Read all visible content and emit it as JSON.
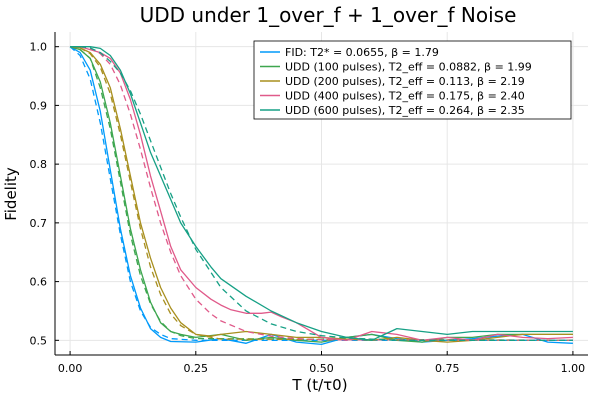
{
  "chart_data": {
    "type": "line",
    "title": "UDD under 1_over_f + 1_over_f Noise",
    "xlabel": "T (t/τ0)",
    "ylabel": "Fidelity",
    "xlim": [
      -0.03,
      1.03
    ],
    "ylim": [
      0.475,
      1.025
    ],
    "xticks": [
      0.0,
      0.25,
      0.5,
      0.75,
      1.0
    ],
    "xtick_labels": [
      "0.00",
      "0.25",
      "0.50",
      "0.75",
      "1.00"
    ],
    "yticks": [
      0.5,
      0.6,
      0.7,
      0.8,
      0.9,
      1.0
    ],
    "ytick_labels": [
      "0.5",
      "0.6",
      "0.7",
      "0.8",
      "0.9",
      "1.0"
    ],
    "grid": true,
    "legend_position": "top-right",
    "series": [
      {
        "name": "FID: T2* = 0.0655, β = 1.79",
        "color": "#009AFA",
        "x": [
          0.0,
          0.02,
          0.04,
          0.06,
          0.08,
          0.1,
          0.12,
          0.14,
          0.16,
          0.18,
          0.2,
          0.25,
          0.3,
          0.35,
          0.4,
          0.45,
          0.5,
          0.55,
          0.6,
          0.65,
          0.7,
          0.75,
          0.8,
          0.85,
          0.9,
          0.95,
          1.0
        ],
        "y": [
          1.0,
          0.99,
          0.96,
          0.89,
          0.79,
          0.69,
          0.61,
          0.555,
          0.52,
          0.505,
          0.498,
          0.497,
          0.503,
          0.495,
          0.51,
          0.497,
          0.493,
          0.505,
          0.51,
          0.503,
          0.497,
          0.5,
          0.503,
          0.507,
          0.51,
          0.497,
          0.495
        ],
        "fit_x": [
          0.0,
          0.02,
          0.04,
          0.06,
          0.08,
          0.1,
          0.12,
          0.14,
          0.16,
          0.18,
          0.2,
          0.25,
          0.3,
          1.0
        ],
        "fit_y": [
          1.0,
          0.985,
          0.945,
          0.87,
          0.775,
          0.68,
          0.6,
          0.55,
          0.522,
          0.51,
          0.503,
          0.5,
          0.5,
          0.5
        ]
      },
      {
        "name": "UDD (100 pulses), T2_eff = 0.0882, β = 1.99",
        "color": "#3DA64F",
        "x": [
          0.0,
          0.02,
          0.04,
          0.06,
          0.08,
          0.1,
          0.12,
          0.14,
          0.16,
          0.18,
          0.2,
          0.22,
          0.25,
          0.3,
          0.35,
          0.4,
          0.45,
          0.5,
          0.55,
          0.6,
          0.65,
          0.7,
          0.75,
          0.8,
          0.85,
          0.9,
          0.95,
          1.0
        ],
        "y": [
          1.0,
          0.995,
          0.98,
          0.94,
          0.87,
          0.78,
          0.69,
          0.62,
          0.565,
          0.53,
          0.515,
          0.51,
          0.505,
          0.51,
          0.5,
          0.505,
          0.5,
          0.497,
          0.505,
          0.51,
          0.5,
          0.497,
          0.505,
          0.505,
          0.51,
          0.51,
          0.51,
          0.51
        ],
        "fit_x": [
          0.0,
          0.02,
          0.04,
          0.06,
          0.08,
          0.1,
          0.12,
          0.14,
          0.16,
          0.18,
          0.2,
          0.22,
          0.25,
          1.0
        ],
        "fit_y": [
          1.0,
          0.995,
          0.98,
          0.93,
          0.86,
          0.77,
          0.68,
          0.61,
          0.562,
          0.532,
          0.515,
          0.508,
          0.503,
          0.5
        ]
      },
      {
        "name": "UDD (200 pulses), T2_eff = 0.113, β = 2.19",
        "color": "#A88F1F",
        "x": [
          0.0,
          0.02,
          0.04,
          0.06,
          0.08,
          0.1,
          0.12,
          0.14,
          0.16,
          0.18,
          0.2,
          0.22,
          0.25,
          0.28,
          0.3,
          0.35,
          0.4,
          0.45,
          0.5,
          0.55,
          0.6,
          0.65,
          0.7,
          0.75,
          0.8,
          0.85,
          0.9,
          0.95,
          1.0
        ],
        "y": [
          1.0,
          0.998,
          0.99,
          0.97,
          0.93,
          0.86,
          0.78,
          0.7,
          0.64,
          0.59,
          0.555,
          0.53,
          0.51,
          0.507,
          0.51,
          0.515,
          0.51,
          0.505,
          0.505,
          0.502,
          0.5,
          0.505,
          0.5,
          0.497,
          0.5,
          0.505,
          0.51,
          0.51,
          0.51
        ],
        "fit_x": [
          0.0,
          0.02,
          0.04,
          0.06,
          0.08,
          0.1,
          0.12,
          0.14,
          0.16,
          0.18,
          0.2,
          0.22,
          0.25,
          0.3,
          1.0
        ],
        "fit_y": [
          1.0,
          0.998,
          0.988,
          0.965,
          0.92,
          0.85,
          0.77,
          0.69,
          0.625,
          0.578,
          0.545,
          0.525,
          0.51,
          0.502,
          0.5
        ]
      },
      {
        "name": "UDD (400 pulses), T2_eff = 0.175, β = 2.40",
        "color": "#E05A8A",
        "x": [
          0.0,
          0.02,
          0.04,
          0.06,
          0.08,
          0.1,
          0.12,
          0.14,
          0.16,
          0.18,
          0.2,
          0.22,
          0.25,
          0.28,
          0.3,
          0.32,
          0.35,
          0.38,
          0.4,
          0.42,
          0.45,
          0.5,
          0.55,
          0.6,
          0.65,
          0.7,
          0.75,
          0.8,
          0.85,
          0.9,
          0.95,
          1.0
        ],
        "y": [
          1.0,
          1.0,
          0.995,
          0.99,
          0.98,
          0.955,
          0.91,
          0.85,
          0.78,
          0.72,
          0.66,
          0.62,
          0.59,
          0.57,
          0.56,
          0.552,
          0.546,
          0.546,
          0.548,
          0.54,
          0.53,
          0.505,
          0.5,
          0.515,
          0.51,
          0.5,
          0.505,
          0.5,
          0.51,
          0.505,
          0.503,
          0.505
        ],
        "fit_x": [
          0.0,
          0.02,
          0.04,
          0.06,
          0.08,
          0.1,
          0.12,
          0.14,
          0.16,
          0.18,
          0.2,
          0.22,
          0.25,
          0.28,
          0.3,
          0.35,
          0.4,
          0.45,
          0.5,
          1.0
        ],
        "fit_y": [
          1.0,
          1.0,
          0.997,
          0.988,
          0.97,
          0.935,
          0.885,
          0.825,
          0.76,
          0.7,
          0.65,
          0.61,
          0.57,
          0.545,
          0.533,
          0.515,
          0.507,
          0.503,
          0.501,
          0.5
        ]
      },
      {
        "name": "UDD (600 pulses), T2_eff = 0.264, β = 2.35",
        "color": "#16A085",
        "x": [
          0.0,
          0.02,
          0.04,
          0.06,
          0.08,
          0.1,
          0.12,
          0.14,
          0.16,
          0.18,
          0.2,
          0.22,
          0.25,
          0.28,
          0.3,
          0.35,
          0.4,
          0.45,
          0.5,
          0.55,
          0.6,
          0.65,
          0.7,
          0.75,
          0.8,
          0.85,
          0.9,
          0.95,
          1.0
        ],
        "y": [
          1.0,
          1.0,
          1.0,
          0.997,
          0.985,
          0.96,
          0.92,
          0.87,
          0.82,
          0.78,
          0.74,
          0.7,
          0.66,
          0.625,
          0.605,
          0.575,
          0.55,
          0.53,
          0.515,
          0.505,
          0.5,
          0.52,
          0.515,
          0.51,
          0.515,
          0.515,
          0.515,
          0.515,
          0.515
        ],
        "fit_x": [
          0.0,
          0.02,
          0.04,
          0.06,
          0.08,
          0.1,
          0.12,
          0.14,
          0.16,
          0.18,
          0.2,
          0.22,
          0.25,
          0.3,
          0.35,
          0.4,
          0.45,
          0.5,
          0.55,
          0.6,
          0.65,
          0.7,
          1.0
        ],
        "fit_y": [
          1.0,
          1.0,
          0.998,
          0.99,
          0.975,
          0.955,
          0.925,
          0.885,
          0.84,
          0.795,
          0.75,
          0.71,
          0.655,
          0.59,
          0.55,
          0.528,
          0.515,
          0.508,
          0.504,
          0.502,
          0.5,
          0.5,
          0.5
        ]
      }
    ]
  }
}
